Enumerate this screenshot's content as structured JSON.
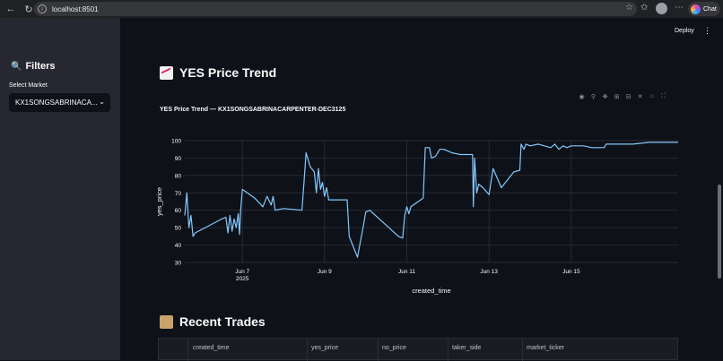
{
  "browser": {
    "url": "localhost:8501",
    "chat_label": "Chat"
  },
  "header": {
    "deploy_label": "Deploy"
  },
  "sidebar": {
    "filters_title": "Filters",
    "select_label": "Select Market",
    "select_value": "KX1SONGSABRINACA..."
  },
  "main": {
    "trend_title": "YES Price Trend",
    "chart_title": "YES Price Trend — KX1SONGSABRINACARPENTER-DEC3125",
    "recent_title": "Recent Trades",
    "table_columns": [
      "created_time",
      "yes_price",
      "no_price",
      "taker_side",
      "market_ticker"
    ]
  },
  "chart_data": {
    "type": "line",
    "title": "YES Price Trend — KX1SONGSABRINACARPENTER-DEC3125",
    "xlabel": "created_time",
    "ylabel": "yes_price",
    "x_tick_labels": [
      "Jun 7",
      "Jun 9",
      "Jun 11",
      "Jun 13",
      "Jun 15"
    ],
    "x_tick_sublabel": "2025",
    "y_ticks": [
      30,
      40,
      50,
      60,
      70,
      80,
      90,
      100
    ],
    "ylim": [
      30,
      100
    ],
    "xlim": [
      5.6,
      17.6
    ],
    "color": "#83c9ff",
    "grid": true,
    "points": [
      [
        5.6,
        57
      ],
      [
        5.65,
        70
      ],
      [
        5.7,
        50
      ],
      [
        5.75,
        57
      ],
      [
        5.8,
        45
      ],
      [
        5.85,
        47
      ],
      [
        6.1,
        50
      ],
      [
        6.5,
        55
      ],
      [
        6.6,
        56
      ],
      [
        6.65,
        47
      ],
      [
        6.7,
        57
      ],
      [
        6.75,
        48
      ],
      [
        6.8,
        55
      ],
      [
        6.85,
        50
      ],
      [
        6.9,
        58
      ],
      [
        6.93,
        46
      ],
      [
        6.96,
        60
      ],
      [
        7.0,
        72
      ],
      [
        7.3,
        67
      ],
      [
        7.5,
        62
      ],
      [
        7.6,
        68
      ],
      [
        7.7,
        63
      ],
      [
        7.75,
        68
      ],
      [
        7.8,
        60
      ],
      [
        8.0,
        61
      ],
      [
        8.45,
        60
      ],
      [
        8.5,
        76
      ],
      [
        8.55,
        93
      ],
      [
        8.65,
        85
      ],
      [
        8.75,
        82
      ],
      [
        8.8,
        70
      ],
      [
        8.85,
        84
      ],
      [
        8.9,
        72
      ],
      [
        8.95,
        76
      ],
      [
        9.0,
        68
      ],
      [
        9.05,
        73
      ],
      [
        9.1,
        66
      ],
      [
        9.55,
        66
      ],
      [
        9.6,
        45
      ],
      [
        9.7,
        39
      ],
      [
        9.8,
        33
      ],
      [
        9.95,
        52
      ],
      [
        10.0,
        59
      ],
      [
        10.1,
        60
      ],
      [
        10.8,
        45
      ],
      [
        10.9,
        44
      ],
      [
        10.95,
        57
      ],
      [
        11.0,
        62
      ],
      [
        11.05,
        58
      ],
      [
        11.1,
        62
      ],
      [
        11.4,
        67
      ],
      [
        11.45,
        96
      ],
      [
        11.55,
        96
      ],
      [
        11.6,
        90
      ],
      [
        11.7,
        91
      ],
      [
        11.8,
        95
      ],
      [
        11.9,
        95
      ],
      [
        12.1,
        93
      ],
      [
        12.3,
        92
      ],
      [
        12.6,
        92
      ],
      [
        12.62,
        62
      ],
      [
        12.65,
        90
      ],
      [
        12.7,
        70
      ],
      [
        12.75,
        75
      ],
      [
        12.8,
        74
      ],
      [
        12.85,
        73
      ],
      [
        13.0,
        69
      ],
      [
        13.1,
        84
      ],
      [
        13.3,
        73
      ],
      [
        13.6,
        82
      ],
      [
        13.75,
        83
      ],
      [
        13.78,
        98
      ],
      [
        13.85,
        95
      ],
      [
        13.9,
        98
      ],
      [
        14.0,
        97
      ],
      [
        14.2,
        98
      ],
      [
        14.5,
        96
      ],
      [
        14.6,
        98
      ],
      [
        14.7,
        95
      ],
      [
        14.8,
        97
      ],
      [
        14.9,
        96
      ],
      [
        15.0,
        97
      ],
      [
        15.3,
        97
      ],
      [
        15.5,
        96
      ],
      [
        15.8,
        96
      ],
      [
        15.85,
        98
      ],
      [
        16.5,
        98
      ],
      [
        16.9,
        99
      ],
      [
        17.6,
        99
      ]
    ]
  }
}
